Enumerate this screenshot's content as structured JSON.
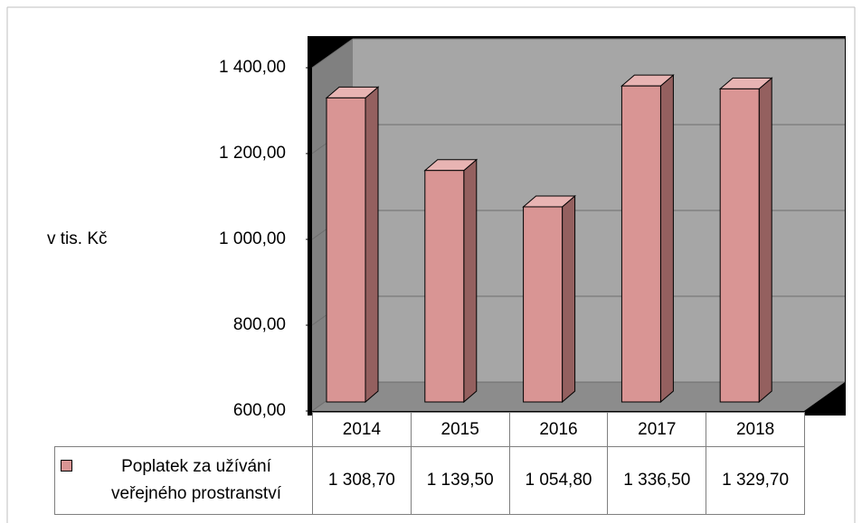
{
  "chart_data": {
    "type": "bar",
    "y_axis_label": "v tis. Kč",
    "categories": [
      "2014",
      "2015",
      "2016",
      "2017",
      "2018"
    ],
    "series": [
      {
        "name": "Poplatek za užívání veřejného prostranství",
        "color": "#d99594",
        "values": [
          1308.7,
          1139.5,
          1054.8,
          1336.5,
          1329.7
        ],
        "value_labels": [
          "1 308,70",
          "1 139,50",
          "1 054,80",
          "1 336,50",
          "1 329,70"
        ]
      }
    ],
    "ylim": [
      600,
      1400
    ],
    "yticks": [
      {
        "value": 600,
        "label": "600,00"
      },
      {
        "value": 800,
        "label": "800,00"
      },
      {
        "value": 1000,
        "label": "1 000,00"
      },
      {
        "value": 1200,
        "label": "1 200,00"
      },
      {
        "value": 1400,
        "label": "1 400,00"
      }
    ],
    "grid": true
  }
}
